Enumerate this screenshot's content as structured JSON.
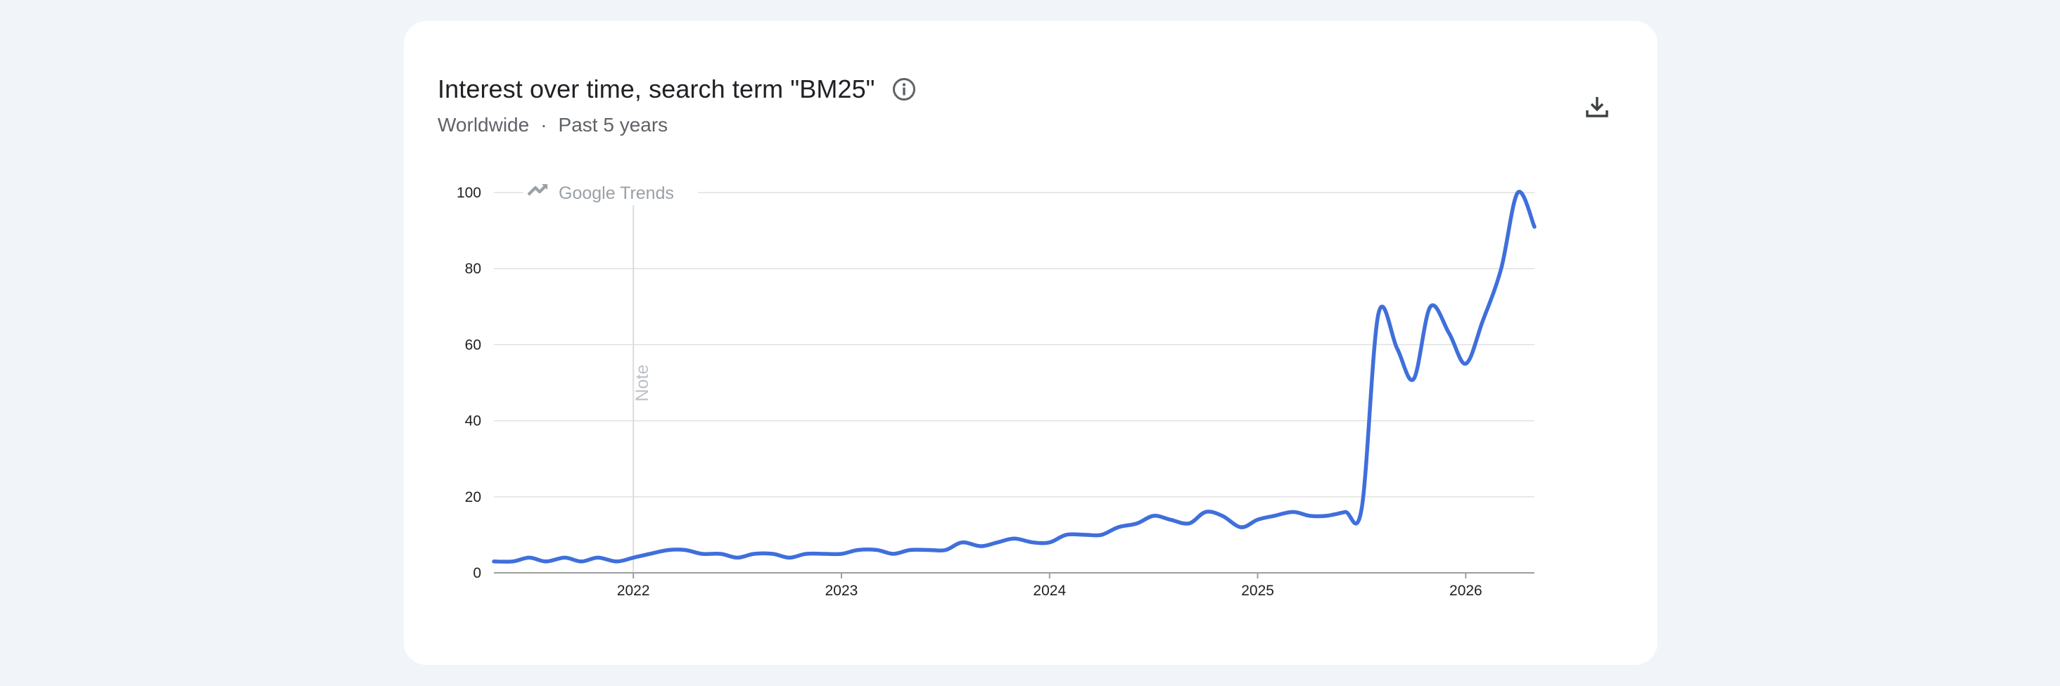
{
  "header": {
    "title": "Interest over time, search term \"BM25\"",
    "region": "Worldwide",
    "separator": "·",
    "period": "Past 5 years"
  },
  "watermark": "Google Trends",
  "annotation": {
    "label": "Note",
    "x": 2022.0
  },
  "colors": {
    "line": "#3f6fdb",
    "grid": "#e0e0e0",
    "axis": "#9e9e9e",
    "background": "#f1f4f9",
    "card": "#ffffff"
  },
  "icons": {
    "info": "info-circle-icon",
    "download": "download-icon",
    "watermark": "trending-up-icon"
  },
  "chart_data": {
    "type": "line",
    "title": "Interest over time, search term \"BM25\"",
    "xlabel": "",
    "ylabel": "",
    "xlim": [
      2021.33,
      2026.33
    ],
    "ylim": [
      0,
      100
    ],
    "yticks": [
      0,
      20,
      40,
      60,
      80,
      100
    ],
    "xticks": [
      {
        "value": 2022,
        "label": "2022"
      },
      {
        "value": 2023,
        "label": "2023"
      },
      {
        "value": 2024,
        "label": "2024"
      },
      {
        "value": 2025,
        "label": "2025"
      },
      {
        "value": 2026,
        "label": "2026"
      }
    ],
    "grid": true,
    "series": [
      {
        "values": [
          [
            2021.33,
            3
          ],
          [
            2021.42,
            3
          ],
          [
            2021.5,
            4
          ],
          [
            2021.58,
            3
          ],
          [
            2021.67,
            4
          ],
          [
            2021.75,
            3
          ],
          [
            2021.83,
            4
          ],
          [
            2021.92,
            3
          ],
          [
            2022.0,
            4
          ],
          [
            2022.08,
            5
          ],
          [
            2022.17,
            6
          ],
          [
            2022.25,
            6
          ],
          [
            2022.33,
            5
          ],
          [
            2022.42,
            5
          ],
          [
            2022.5,
            4
          ],
          [
            2022.58,
            5
          ],
          [
            2022.67,
            5
          ],
          [
            2022.75,
            4
          ],
          [
            2022.83,
            5
          ],
          [
            2022.92,
            5
          ],
          [
            2023.0,
            5
          ],
          [
            2023.08,
            6
          ],
          [
            2023.17,
            6
          ],
          [
            2023.25,
            5
          ],
          [
            2023.33,
            6
          ],
          [
            2023.42,
            6
          ],
          [
            2023.5,
            6
          ],
          [
            2023.58,
            8
          ],
          [
            2023.67,
            7
          ],
          [
            2023.75,
            8
          ],
          [
            2023.83,
            9
          ],
          [
            2023.92,
            8
          ],
          [
            2024.0,
            8
          ],
          [
            2024.08,
            10
          ],
          [
            2024.17,
            10
          ],
          [
            2024.25,
            10
          ],
          [
            2024.33,
            12
          ],
          [
            2024.42,
            13
          ],
          [
            2024.5,
            15
          ],
          [
            2024.58,
            14
          ],
          [
            2024.67,
            13
          ],
          [
            2024.75,
            16
          ],
          [
            2024.83,
            15
          ],
          [
            2024.92,
            12
          ],
          [
            2025.0,
            14
          ],
          [
            2025.08,
            15
          ],
          [
            2025.17,
            16
          ],
          [
            2025.25,
            15
          ],
          [
            2025.33,
            15
          ],
          [
            2025.42,
            16
          ],
          [
            2025.5,
            17
          ],
          [
            2025.58,
            68
          ],
          [
            2025.67,
            59
          ],
          [
            2025.75,
            51
          ],
          [
            2025.83,
            70
          ],
          [
            2025.92,
            63
          ],
          [
            2026.0,
            55
          ],
          [
            2026.08,
            66
          ],
          [
            2026.17,
            80
          ],
          [
            2026.25,
            100
          ],
          [
            2026.33,
            91
          ]
        ]
      }
    ]
  }
}
